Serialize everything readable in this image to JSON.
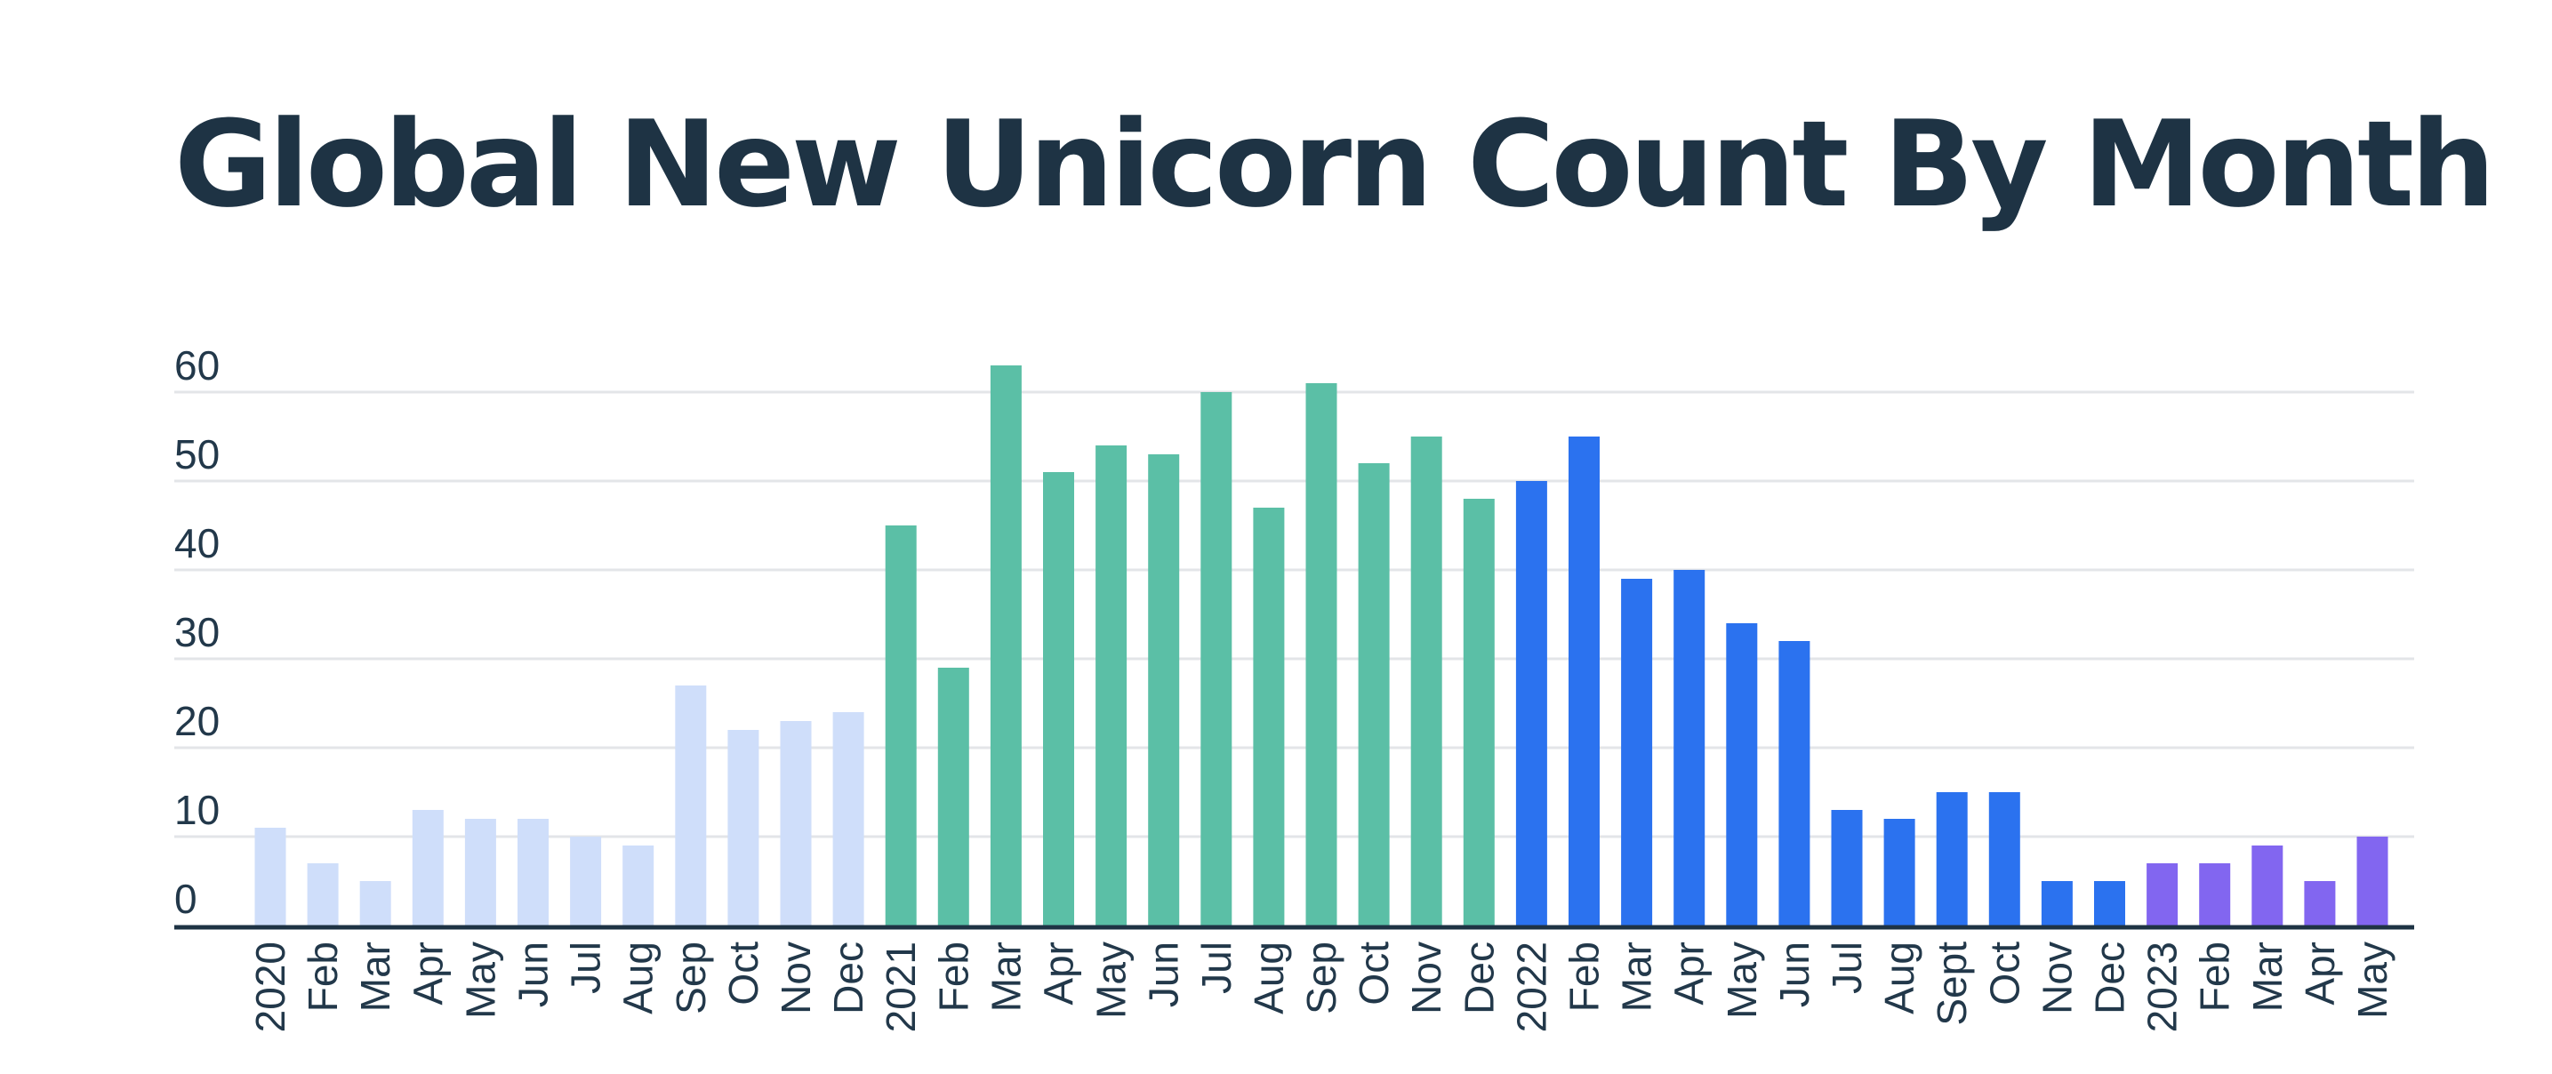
{
  "chart_data": {
    "type": "bar",
    "title": "Global New Unicorn Count By Month",
    "xlabel": "",
    "ylabel": "",
    "ylim": [
      0,
      60
    ],
    "yticks": [
      0,
      10,
      20,
      30,
      40,
      50,
      60
    ],
    "grid": true,
    "categories": [
      "2020",
      "Feb",
      "Mar",
      "Apr",
      "May",
      "Jun",
      "Jul",
      "Aug",
      "Sep",
      "Oct",
      "Nov",
      "Dec",
      "2021",
      "Feb",
      "Mar",
      "Apr",
      "May",
      "Jun",
      "Jul",
      "Aug",
      "Sep",
      "Oct",
      "Nov",
      "Dec",
      "2022",
      "Feb",
      "Mar",
      "Apr",
      "May",
      "Jun",
      "Jul",
      "Aug",
      "Sept",
      "Oct",
      "Nov",
      "Dec",
      "2023",
      "Feb",
      "Mar",
      "Apr",
      "May"
    ],
    "values": [
      11,
      7,
      5,
      13,
      12,
      12,
      10,
      9,
      27,
      22,
      23,
      24,
      45,
      29,
      63,
      51,
      54,
      53,
      60,
      47,
      61,
      52,
      55,
      48,
      50,
      55,
      39,
      40,
      34,
      32,
      13,
      12,
      15,
      15,
      5,
      5,
      7,
      7,
      9,
      5,
      10
    ],
    "year_groups": [
      {
        "year": "2020",
        "count": 12,
        "color": "#cfdefa"
      },
      {
        "year": "2021",
        "count": 12,
        "color": "#5bbfa6"
      },
      {
        "year": "2022",
        "count": 12,
        "color": "#2b72ef"
      },
      {
        "year": "2023",
        "count": 5,
        "color": "#8266f0"
      }
    ],
    "colors": {
      "axis": "#1e3344",
      "grid": "#e3e5e8",
      "text": "#22384a"
    }
  }
}
